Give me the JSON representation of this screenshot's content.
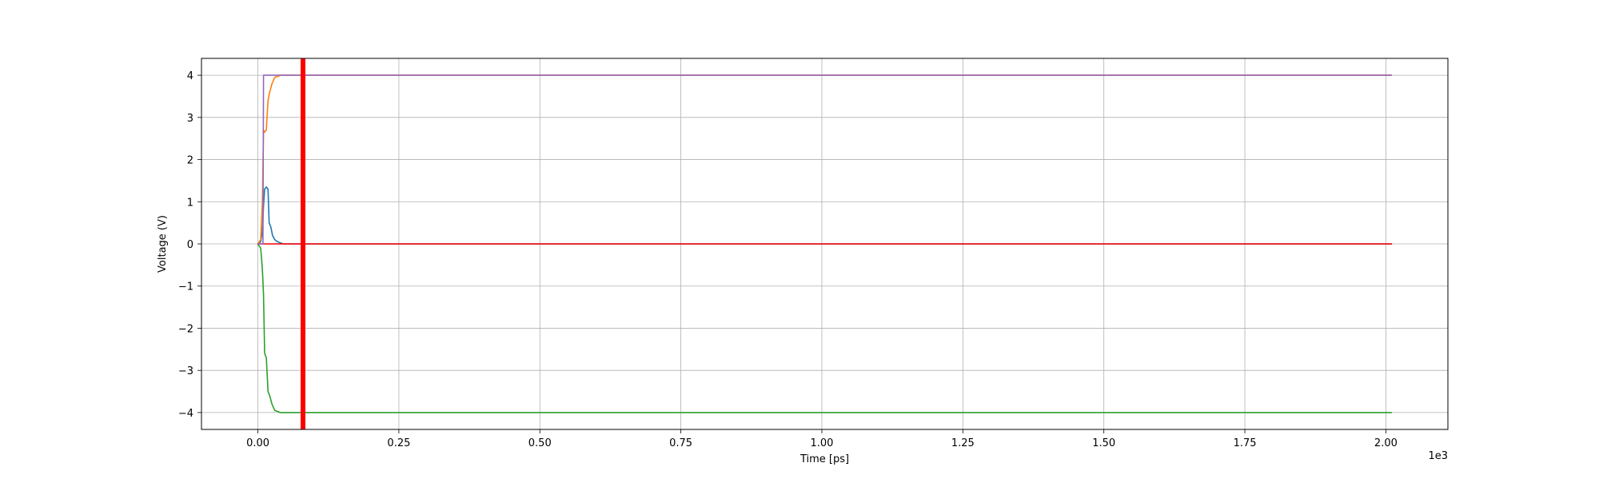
{
  "chart_data": {
    "type": "line",
    "title": "",
    "xlabel": "Time [ps]",
    "ylabel": "Voltage (V)",
    "x_offset_label": "1e3",
    "x_scale_factor": 1000,
    "xlim": [
      -100,
      2110
    ],
    "ylim": [
      -4.4,
      4.4
    ],
    "grid": true,
    "x_ticks": [
      0,
      250,
      500,
      750,
      1000,
      1250,
      1500,
      1750,
      2000
    ],
    "x_tick_labels": [
      "0.00",
      "0.25",
      "0.50",
      "0.75",
      "1.00",
      "1.25",
      "1.50",
      "1.75",
      "2.00"
    ],
    "y_ticks": [
      -4,
      -3,
      -2,
      -1,
      0,
      1,
      2,
      3,
      4
    ],
    "y_tick_labels": [
      "−4",
      "−3",
      "−2",
      "−1",
      "0",
      "1",
      "2",
      "3",
      "4"
    ],
    "series": [
      {
        "color": "#1f77b4",
        "points": [
          [
            0,
            0
          ],
          [
            5,
            0.05
          ],
          [
            8,
            0.3
          ],
          [
            10,
            0.9
          ],
          [
            12,
            1.3
          ],
          [
            15,
            1.35
          ],
          [
            18,
            1.3
          ],
          [
            20,
            0.5
          ],
          [
            23,
            0.4
          ],
          [
            26,
            0.2
          ],
          [
            30,
            0.1
          ],
          [
            35,
            0.05
          ],
          [
            45,
            0
          ],
          [
            2010,
            0
          ]
        ]
      },
      {
        "color": "#ff7f0e",
        "points": [
          [
            0,
            0
          ],
          [
            5,
            0.1
          ],
          [
            8,
            1.0
          ],
          [
            10,
            2.7
          ],
          [
            12,
            2.65
          ],
          [
            15,
            2.7
          ],
          [
            18,
            3.4
          ],
          [
            21,
            3.6
          ],
          [
            25,
            3.8
          ],
          [
            30,
            3.95
          ],
          [
            40,
            4.0
          ],
          [
            2010,
            4.0
          ]
        ]
      },
      {
        "color": "#2ca02c",
        "points": [
          [
            0,
            0
          ],
          [
            5,
            -0.1
          ],
          [
            8,
            -0.6
          ],
          [
            10,
            -1.2
          ],
          [
            12,
            -2.6
          ],
          [
            15,
            -2.7
          ],
          [
            18,
            -3.5
          ],
          [
            21,
            -3.6
          ],
          [
            25,
            -3.8
          ],
          [
            30,
            -3.95
          ],
          [
            40,
            -4.0
          ],
          [
            2010,
            -4.0
          ]
        ]
      },
      {
        "color": "#ff0000",
        "points": [
          [
            0,
            0
          ],
          [
            2010,
            0
          ]
        ]
      },
      {
        "color": "#9467bd",
        "points": [
          [
            0,
            0
          ],
          [
            9,
            0
          ],
          [
            10,
            4.0
          ],
          [
            2010,
            4.0
          ]
        ]
      }
    ],
    "vertical_marker": {
      "x": 80,
      "color": "#ff0000"
    }
  }
}
